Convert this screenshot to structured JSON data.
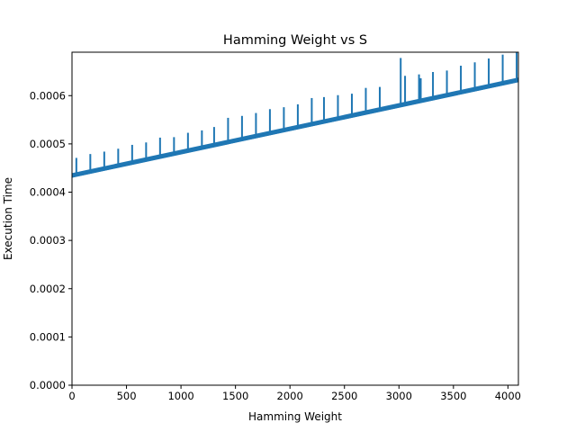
{
  "chart_data": {
    "type": "line",
    "title": "Hamming Weight vs S",
    "xlabel": "Hamming Weight",
    "ylabel": "Execution Time",
    "xlim": [
      0,
      4096
    ],
    "ylim": [
      0,
      0.00069
    ],
    "x_ticks": [
      0,
      500,
      1000,
      1500,
      2000,
      2500,
      3000,
      3500,
      4000
    ],
    "x_tick_labels": [
      "0",
      "500",
      "1000",
      "1500",
      "2000",
      "2500",
      "3000",
      "3500",
      "4000"
    ],
    "y_ticks": [
      0,
      0.0001,
      0.0002,
      0.0003,
      0.0004,
      0.0005,
      0.0006
    ],
    "y_tick_labels": [
      "0.0000",
      "0.0001",
      "0.0002",
      "0.0003",
      "0.0004",
      "0.0005",
      "0.0006"
    ],
    "grid": false,
    "legend": "none",
    "series": [
      {
        "color": "#1f77b4",
        "baseline": {
          "x": [
            0,
            4096
          ],
          "y": [
            0.000432,
            0.00063
          ]
        },
        "spikes": [
          {
            "x": 40,
            "y": 0.000471
          },
          {
            "x": 168,
            "y": 0.000479
          },
          {
            "x": 296,
            "y": 0.000484
          },
          {
            "x": 424,
            "y": 0.00049
          },
          {
            "x": 552,
            "y": 0.000498
          },
          {
            "x": 680,
            "y": 0.000503
          },
          {
            "x": 808,
            "y": 0.000513
          },
          {
            "x": 936,
            "y": 0.000514
          },
          {
            "x": 1064,
            "y": 0.000523
          },
          {
            "x": 1192,
            "y": 0.000528
          },
          {
            "x": 1304,
            "y": 0.000535
          },
          {
            "x": 1432,
            "y": 0.000554
          },
          {
            "x": 1560,
            "y": 0.000558
          },
          {
            "x": 1688,
            "y": 0.000564
          },
          {
            "x": 1816,
            "y": 0.000572
          },
          {
            "x": 1944,
            "y": 0.000576
          },
          {
            "x": 2072,
            "y": 0.000582
          },
          {
            "x": 2200,
            "y": 0.000595
          },
          {
            "x": 2312,
            "y": 0.000597
          },
          {
            "x": 2440,
            "y": 0.000601
          },
          {
            "x": 2568,
            "y": 0.000604
          },
          {
            "x": 2696,
            "y": 0.000616
          },
          {
            "x": 2824,
            "y": 0.000618
          },
          {
            "x": 3016,
            "y": 0.000678
          },
          {
            "x": 3056,
            "y": 0.000641
          },
          {
            "x": 3184,
            "y": 0.000644
          },
          {
            "x": 3200,
            "y": 0.000636
          },
          {
            "x": 3312,
            "y": 0.000649
          },
          {
            "x": 3440,
            "y": 0.000652
          },
          {
            "x": 3568,
            "y": 0.000662
          },
          {
            "x": 3696,
            "y": 0.000669
          },
          {
            "x": 3824,
            "y": 0.000677
          },
          {
            "x": 3952,
            "y": 0.000685
          },
          {
            "x": 4080,
            "y": 0.00069
          }
        ]
      }
    ]
  }
}
